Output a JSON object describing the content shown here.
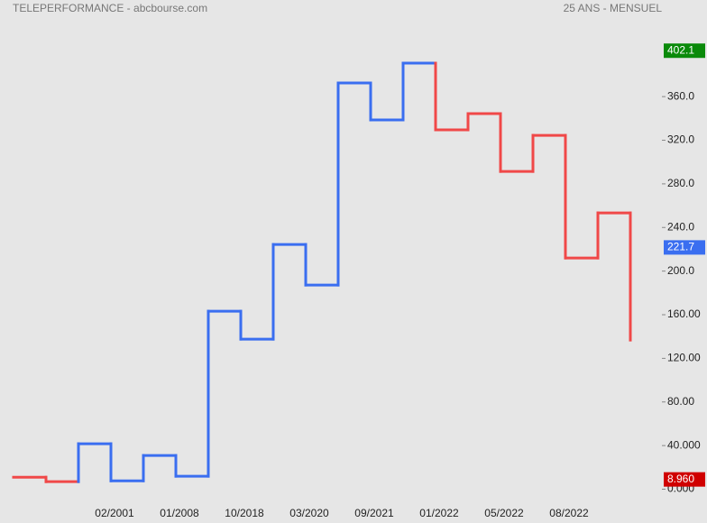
{
  "chart_data": {
    "type": "kagi",
    "title": "TELEPERFORMANCE - abcbourse.com",
    "subtitle": "25 ANS - MENSUEL",
    "categories": [
      null,
      null,
      null,
      "02/2001",
      null,
      "01/2008",
      null,
      "10/2018",
      null,
      "03/2020",
      null,
      "09/2021",
      null,
      "01/2022",
      null,
      "05/2022",
      null,
      "08/2022",
      null,
      null
    ],
    "values": [
      11.0,
      6.9,
      41.7,
      7.7,
      30.9,
      11.9,
      163.2,
      137.6,
      224.4,
      187.2,
      372.5,
      338.6,
      390.7,
      329.5,
      344.4,
      291.4,
      324.5,
      212.0,
      253.4,
      136.8
    ],
    "colors": [
      "#f04848",
      "#f04848",
      "#3a6ef0",
      "#3a6ef0",
      "#3a6ef0",
      "#3a6ef0",
      "#3a6ef0",
      "#3a6ef0",
      "#3a6ef0",
      "#3a6ef0",
      "#3a6ef0",
      "#3a6ef0",
      "#3a6ef0",
      "#f04848",
      "#f04848",
      "#f04848",
      "#f04848",
      "#f04848",
      "#f04848",
      "#f04848"
    ],
    "ylim": [
      -31,
      448.6
    ],
    "yticks": [
      {
        "value": 0,
        "label": "0.000"
      },
      {
        "value": 40,
        "label": "40.000"
      },
      {
        "value": 80,
        "label": "80.00"
      },
      {
        "value": 120,
        "label": "120.00"
      },
      {
        "value": 160,
        "label": "160.00"
      },
      {
        "value": 200,
        "label": "200.0"
      },
      {
        "value": 240,
        "label": "240.0"
      },
      {
        "value": 280,
        "label": "280.0"
      },
      {
        "value": 320,
        "label": "320.0"
      },
      {
        "value": 360,
        "label": "360.0"
      }
    ],
    "markers": [
      {
        "value": 402.1,
        "color": "#0a8a0a"
      },
      {
        "value": 221.7,
        "color": "#3a6ef0"
      },
      {
        "value": 8.96,
        "label": "8.960",
        "color": "#d00000"
      }
    ]
  }
}
